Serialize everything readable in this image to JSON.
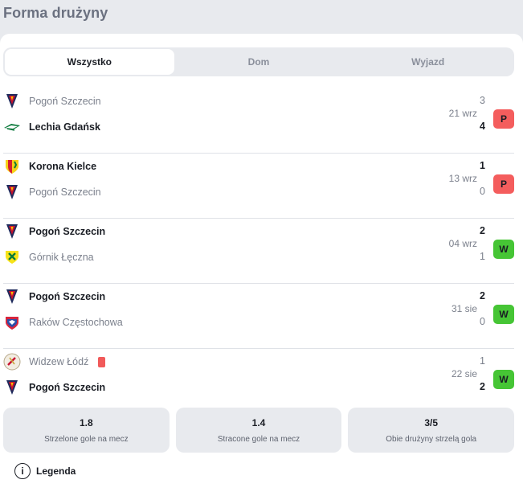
{
  "header": {
    "title": "Forma drużyny"
  },
  "tabs": [
    {
      "label": "Wszystko",
      "active": true
    },
    {
      "label": "Dom",
      "active": false
    },
    {
      "label": "Wyjazd",
      "active": false
    }
  ],
  "matches": [
    {
      "home": {
        "name": "Pogoń Szczecin",
        "score": "3",
        "crest": "pogon-crest",
        "bold": false
      },
      "away": {
        "name": "Lechia Gdańsk",
        "score": "4",
        "crest": "lechia-crest",
        "bold": true
      },
      "date": "21 wrz",
      "result": "P",
      "result_color": "#f45d5d"
    },
    {
      "home": {
        "name": "Korona Kielce",
        "score": "1",
        "crest": "korona-crest",
        "bold": true
      },
      "away": {
        "name": "Pogoń Szczecin",
        "score": "0",
        "crest": "pogon-crest",
        "bold": false
      },
      "date": "13 wrz",
      "result": "P",
      "result_color": "#f45d5d"
    },
    {
      "home": {
        "name": "Pogoń Szczecin",
        "score": "2",
        "crest": "pogon-crest",
        "bold": true
      },
      "away": {
        "name": "Górnik Łęczna",
        "score": "1",
        "crest": "gornik-crest",
        "bold": false
      },
      "date": "04 wrz",
      "result": "W",
      "result_color": "#46c535"
    },
    {
      "home": {
        "name": "Pogoń Szczecin",
        "score": "2",
        "crest": "pogon-crest",
        "bold": true
      },
      "away": {
        "name": "Raków Częstochowa",
        "score": "0",
        "crest": "rakow-crest",
        "bold": false
      },
      "date": "31 sie",
      "result": "W",
      "result_color": "#46c535"
    },
    {
      "home": {
        "name": "Widzew Łódź",
        "score": "1",
        "crest": "widzew-crest",
        "bold": false,
        "red_card": true
      },
      "away": {
        "name": "Pogoń Szczecin",
        "score": "2",
        "crest": "pogon-crest",
        "bold": true
      },
      "date": "22 sie",
      "result": "W",
      "result_color": "#46c535"
    }
  ],
  "stats": [
    {
      "value": "1.8",
      "label": "Strzelone gole na mecz"
    },
    {
      "value": "1.4",
      "label": "Stracone gole na mecz"
    },
    {
      "value": "3/5",
      "label": "Obie drużyny strzelą gola"
    }
  ],
  "legend": {
    "icon": "info-icon",
    "label": "Legenda"
  }
}
